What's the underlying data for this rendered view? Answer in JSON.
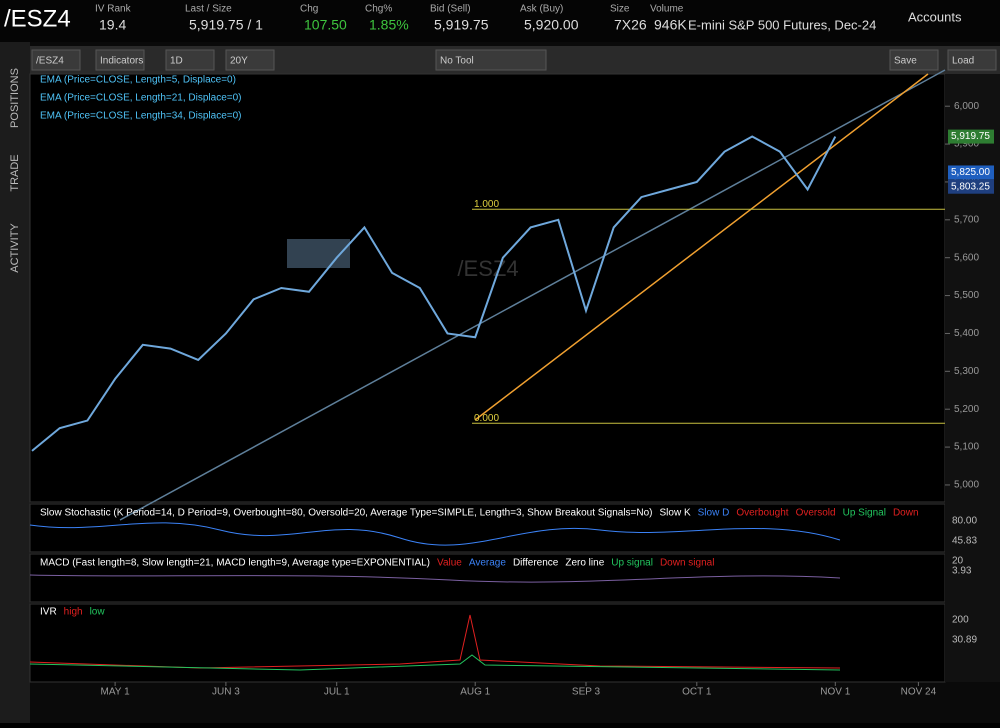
{
  "header": {
    "symbol": "/ESZ4",
    "fields": [
      {
        "label": "IV Rank",
        "value": "19.4"
      },
      {
        "label": "Last / Size",
        "value": "5,919.75 / 1"
      },
      {
        "label": "Chg",
        "value": "107.50"
      },
      {
        "label": "Chg%",
        "value": "1.85%"
      },
      {
        "label": "Bid (Sell)",
        "value": "5,919.75"
      },
      {
        "label": "Ask (Buy)",
        "value": "5,920.00"
      },
      {
        "label": "Size",
        "value": "7X26"
      },
      {
        "label": "Volume",
        "value": "946K"
      }
    ],
    "description": "E-mini S&P 500 Futures, Dec-24",
    "accounts": "Accounts"
  },
  "sidebar": {
    "tabs": [
      "POSITIONS",
      "TRADE",
      "ACTIVITY"
    ]
  },
  "toolbar": {
    "symbol": "/ESZ4",
    "indicators": "Indicators",
    "period": "1D",
    "range": "20Y",
    "tool": "No Tool",
    "save": "Save",
    "load": "Load"
  },
  "studies": [
    "EMA (Price=CLOSE, Length=5, Displace=0)",
    "EMA (Price=CLOSE, Length=21, Displace=0)",
    "EMA (Price=CLOSE, Length=34, Displace=0)"
  ],
  "chart_data": {
    "type": "line",
    "color": "#6fa8dc",
    "watermark": "/ESZ4",
    "categories": [
      null,
      null,
      null,
      "MAY 1",
      null,
      null,
      null,
      "JUN 3",
      null,
      null,
      null,
      "JUL 1",
      null,
      null,
      null,
      null,
      "AUG 1",
      null,
      null,
      null,
      "SEP 3",
      null,
      null,
      null,
      "OCT 1",
      null,
      null,
      null,
      null,
      "NOV 1",
      null,
      null,
      "NOV 24"
    ],
    "values": [
      5090,
      5150,
      5170,
      5280,
      5370,
      5360,
      5330,
      5400,
      5490,
      5520,
      5510,
      5600,
      5680,
      5560,
      5520,
      5400,
      5390,
      5600,
      5680,
      5700,
      5460,
      5680,
      5760,
      5780,
      5800,
      5880,
      5920,
      5880,
      5780,
      5919.75,
      null,
      null,
      null
    ],
    "ylim": [
      4955,
      6085
    ],
    "yticks": [
      {
        "value": 5000,
        "label": "5,000"
      },
      {
        "value": 5100,
        "label": "5,100"
      },
      {
        "value": 5200,
        "label": "5,200"
      },
      {
        "value": 5300,
        "label": "5,300"
      },
      {
        "value": 5400,
        "label": "5,400"
      },
      {
        "value": 5500,
        "label": "5,500"
      },
      {
        "value": 5600,
        "label": "5,600"
      },
      {
        "value": 5700,
        "label": "5,700"
      },
      {
        "value": 5800,
        "label": "5,800"
      },
      {
        "value": 5900,
        "label": "5,900"
      },
      {
        "value": 6000,
        "label": "6,000"
      }
    ],
    "levels": [
      {
        "value": 5728,
        "label": "1.000"
      },
      {
        "value": 5163,
        "label": "0.000"
      }
    ],
    "price_labels": [
      {
        "value": 5919.75,
        "label": "5,919.75",
        "color": "#2e7d32"
      },
      {
        "value": 5825,
        "label": "5,825.00",
        "color": "#1f5fbf"
      },
      {
        "value": 5803.25,
        "label": "5,803.25",
        "color": "#1f3f7f"
      }
    ]
  },
  "lower_panels": [
    {
      "legend": [
        {
          "text": "Slow Stochastic (K Period=14, D Period=9, Overbought=80, Oversold=20, Average Type=SIMPLE, Length=3, Show Breakout Signals=No)",
          "color": "#ffffff"
        },
        {
          "text": "Slow K",
          "color": "#ffffff"
        },
        {
          "text": "Slow D",
          "color": "#3b82f6"
        },
        {
          "text": "Overbought",
          "color": "#e02020"
        },
        {
          "text": "Oversold",
          "color": "#e02020"
        },
        {
          "text": "Up Signal",
          "color": "#22c55e"
        },
        {
          "text": "Down",
          "color": "#e02020"
        }
      ],
      "axis_labels": [
        "80.00",
        "45.83",
        "20"
      ]
    },
    {
      "legend": [
        {
          "text": "MACD (Fast length=8, Slow length=21, MACD length=9, Average type=EXPONENTIAL)",
          "color": "#ffffff"
        },
        {
          "text": "Value",
          "color": "#e02020"
        },
        {
          "text": "Average",
          "color": "#3b82f6"
        },
        {
          "text": "Difference",
          "color": "#ffffff"
        },
        {
          "text": "Zero line",
          "color": "#ffffff"
        },
        {
          "text": "Up signal",
          "color": "#22c55e"
        },
        {
          "text": "Down signal",
          "color": "#e02020"
        }
      ],
      "axis_labels": [
        "3.93"
      ]
    },
    {
      "legend": [
        {
          "text": "IVR",
          "color": "#ffffff"
        },
        {
          "text": "high",
          "color": "#e02020"
        },
        {
          "text": "low",
          "color": "#22c55e"
        }
      ],
      "axis_labels": [
        "200",
        "30.89"
      ]
    }
  ]
}
